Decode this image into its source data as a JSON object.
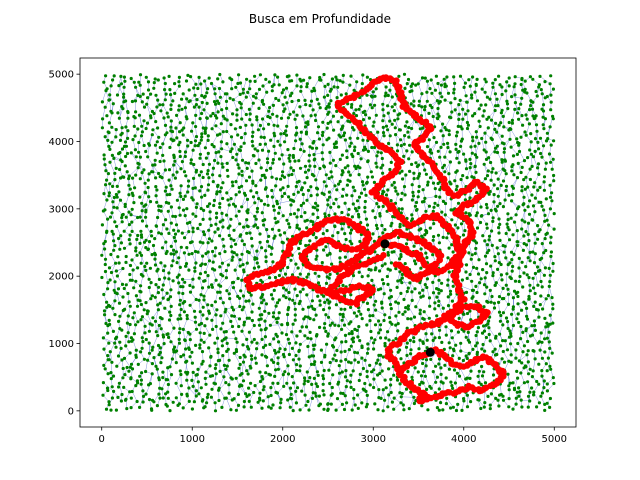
{
  "chart_data": {
    "type": "scatter",
    "title": "Busca em Profundidade",
    "xlabel": "",
    "ylabel": "",
    "xlim": [
      -240,
      5240
    ],
    "ylim": [
      -240,
      5240
    ],
    "xticks": [
      0,
      1000,
      2000,
      3000,
      4000,
      5000
    ],
    "yticks": [
      0,
      1000,
      2000,
      3000,
      4000,
      5000
    ],
    "grid": false,
    "legend": "none",
    "series": [
      {
        "role": "graph-nodes",
        "color": "#008000",
        "count_estimate": 4000,
        "x_range": [
          0,
          5000
        ],
        "y_range": [
          0,
          5000
        ]
      },
      {
        "role": "graph-edges",
        "color": "#1f3fbf"
      },
      {
        "role": "search-path",
        "color": "#ff0000",
        "points": [
          [
            3130,
            2480
          ],
          [
            3300,
            2440
          ],
          [
            3350,
            2400
          ],
          [
            3500,
            2300
          ],
          [
            3600,
            2150
          ],
          [
            3700,
            2050
          ],
          [
            3850,
            2150
          ],
          [
            3950,
            2350
          ],
          [
            3900,
            2600
          ],
          [
            3800,
            2750
          ],
          [
            3700,
            2900
          ],
          [
            3550,
            2850
          ],
          [
            3400,
            2750
          ],
          [
            3250,
            2950
          ],
          [
            3150,
            3100
          ],
          [
            3000,
            3250
          ],
          [
            3100,
            3400
          ],
          [
            3250,
            3550
          ],
          [
            3300,
            3700
          ],
          [
            3200,
            3850
          ],
          [
            3050,
            3950
          ],
          [
            2950,
            4100
          ],
          [
            2850,
            4250
          ],
          [
            2700,
            4400
          ],
          [
            2600,
            4550
          ],
          [
            2750,
            4650
          ],
          [
            2900,
            4750
          ],
          [
            3000,
            4850
          ],
          [
            3100,
            4950
          ],
          [
            3250,
            4900
          ],
          [
            3300,
            4700
          ],
          [
            3350,
            4500
          ],
          [
            3450,
            4400
          ],
          [
            3550,
            4300
          ],
          [
            3650,
            4200
          ],
          [
            3550,
            4050
          ],
          [
            3450,
            3950
          ],
          [
            3550,
            3800
          ],
          [
            3650,
            3650
          ],
          [
            3750,
            3500
          ],
          [
            3800,
            3300
          ],
          [
            3900,
            3200
          ],
          [
            4050,
            3300
          ],
          [
            4150,
            3400
          ],
          [
            4250,
            3300
          ],
          [
            4150,
            3150
          ],
          [
            4000,
            3050
          ],
          [
            3900,
            2950
          ],
          [
            4050,
            2850
          ],
          [
            4100,
            2650
          ],
          [
            4000,
            2450
          ],
          [
            3950,
            2200
          ],
          [
            3900,
            2000
          ],
          [
            3950,
            1800
          ],
          [
            4000,
            1650
          ],
          [
            3900,
            1500
          ],
          [
            3800,
            1400
          ],
          [
            3900,
            1300
          ],
          [
            4050,
            1250
          ],
          [
            4200,
            1350
          ],
          [
            4250,
            1450
          ],
          [
            4150,
            1550
          ],
          [
            4000,
            1550
          ],
          [
            3850,
            1400
          ],
          [
            3700,
            1300
          ],
          [
            3550,
            1250
          ],
          [
            3400,
            1150
          ],
          [
            3300,
            1050
          ],
          [
            3200,
            950
          ],
          [
            3150,
            850
          ],
          [
            3250,
            700
          ],
          [
            3300,
            550
          ],
          [
            3350,
            450
          ],
          [
            3450,
            350
          ],
          [
            3550,
            250
          ],
          [
            3500,
            150
          ],
          [
            3650,
            200
          ],
          [
            3800,
            250
          ],
          [
            3950,
            300
          ],
          [
            4050,
            350
          ],
          [
            4200,
            300
          ],
          [
            4350,
            400
          ],
          [
            4450,
            550
          ],
          [
            4350,
            650
          ],
          [
            4250,
            800
          ],
          [
            4150,
            750
          ],
          [
            4000,
            650
          ],
          [
            3900,
            700
          ],
          [
            3800,
            800
          ],
          [
            3700,
            900
          ],
          [
            3630,
            870
          ],
          [
            3500,
            800
          ],
          [
            3400,
            700
          ],
          [
            3300,
            600
          ],
          [
            3100,
            2300
          ],
          [
            2950,
            2200
          ],
          [
            2800,
            2150
          ],
          [
            2700,
            2050
          ],
          [
            2600,
            1900
          ],
          [
            2500,
            1750
          ],
          [
            2650,
            1650
          ],
          [
            2800,
            1600
          ],
          [
            2900,
            1700
          ],
          [
            3000,
            1800
          ],
          [
            2850,
            1850
          ],
          [
            2700,
            1800
          ],
          [
            2550,
            1750
          ],
          [
            2400,
            1800
          ],
          [
            2250,
            1900
          ],
          [
            2100,
            1950
          ],
          [
            1950,
            1900
          ],
          [
            1800,
            1850
          ],
          [
            1650,
            1800
          ],
          [
            1600,
            1950
          ],
          [
            1750,
            2050
          ],
          [
            1900,
            2100
          ],
          [
            2000,
            2200
          ],
          [
            2050,
            2350
          ],
          [
            2100,
            2500
          ],
          [
            2200,
            2600
          ],
          [
            2350,
            2700
          ],
          [
            2450,
            2800
          ],
          [
            2600,
            2850
          ],
          [
            2750,
            2800
          ],
          [
            2850,
            2700
          ],
          [
            2950,
            2600
          ],
          [
            2900,
            2450
          ],
          [
            2750,
            2400
          ],
          [
            2600,
            2450
          ],
          [
            2500,
            2550
          ],
          [
            2400,
            2500
          ],
          [
            2300,
            2400
          ],
          [
            2200,
            2300
          ],
          [
            2300,
            2150
          ],
          [
            2450,
            2100
          ],
          [
            2600,
            2100
          ],
          [
            2750,
            2200
          ],
          [
            2850,
            2300
          ],
          [
            3000,
            2400
          ],
          [
            3100,
            2550
          ],
          [
            3250,
            2650
          ],
          [
            3400,
            2600
          ],
          [
            3550,
            2500
          ],
          [
            3650,
            2400
          ],
          [
            3750,
            2300
          ],
          [
            3700,
            2200
          ],
          [
            3600,
            2050
          ],
          [
            3450,
            1950
          ],
          [
            3350,
            2100
          ],
          [
            3250,
            2200
          ]
        ]
      },
      {
        "role": "endpoints",
        "color": "#000000",
        "points": [
          [
            3130,
            2480
          ],
          [
            3630,
            870
          ]
        ]
      }
    ]
  }
}
